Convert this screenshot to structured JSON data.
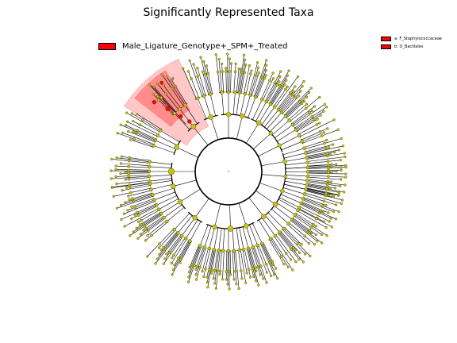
{
  "title": "Significantly Represented Taxa",
  "legend": {
    "label": "Male_Ligature_Genotype+_SPM+_Treated",
    "color": "#ff0000"
  },
  "clade_legend": [
    {
      "label": "a: F_Staphylococcaceae",
      "color": "#ff0000"
    },
    {
      "label": "b: O_Bacillales",
      "color": "#ff0000"
    }
  ],
  "highlight_letters": [
    "a",
    "b"
  ],
  "colors": {
    "node_fill": "#c4c417",
    "node_stroke": "#5a5a00",
    "enriched": "#ff0000",
    "line": "#000000"
  }
}
